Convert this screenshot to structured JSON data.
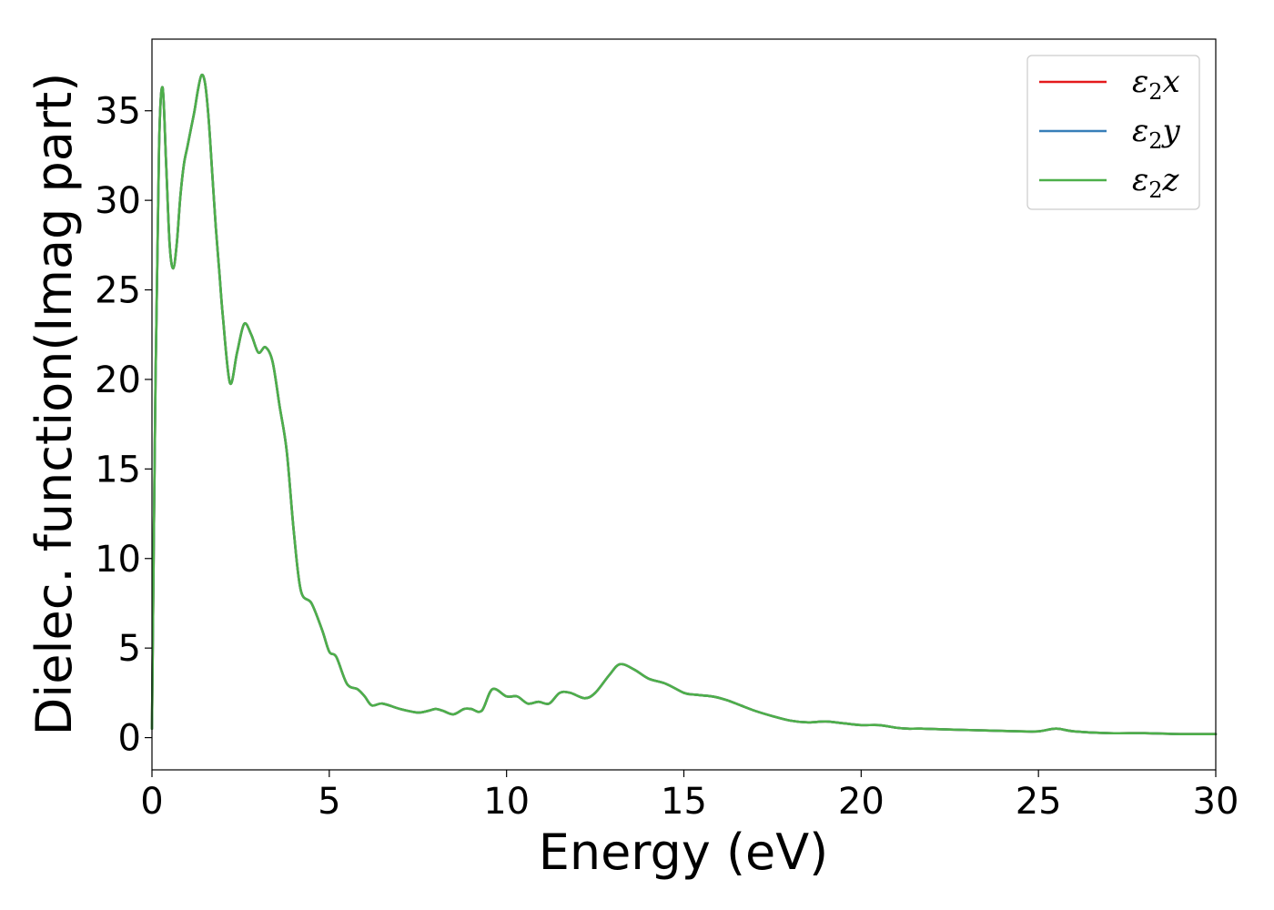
{
  "chart_data": {
    "type": "line",
    "xlabel": "Energy (eV)",
    "ylabel": "Dielec. function(Imag part)",
    "xlim": [
      0,
      30
    ],
    "ylim": [
      -1.8,
      39
    ],
    "xticks": [
      0,
      5,
      10,
      15,
      20,
      25,
      30
    ],
    "yticks": [
      0,
      5,
      10,
      15,
      20,
      25,
      30,
      35
    ],
    "grid": false,
    "legend_position": "top-right",
    "series": [
      {
        "name": "ε₂x",
        "name_parts": {
          "main": "ε",
          "sub": "2",
          "axis": "x"
        },
        "color": "#e41a1c",
        "x": [
          0,
          0.1,
          0.2,
          0.3,
          0.4,
          0.5,
          0.6,
          0.7,
          0.8,
          0.9,
          1.0,
          1.1,
          1.2,
          1.3,
          1.4,
          1.5,
          1.6,
          1.7,
          1.8,
          1.9,
          2.0,
          2.2,
          2.4,
          2.6,
          2.8,
          3.0,
          3.2,
          3.4,
          3.6,
          3.8,
          4.0,
          4.2,
          4.5,
          4.8,
          5.0,
          5.2,
          5.5,
          5.8,
          6.0,
          6.2,
          6.5,
          7.0,
          7.5,
          7.8,
          8.0,
          8.2,
          8.5,
          8.8,
          9.0,
          9.3,
          9.6,
          10.0,
          10.3,
          10.6,
          10.9,
          11.2,
          11.5,
          11.8,
          12.2,
          12.5,
          12.9,
          13.2,
          13.6,
          14.0,
          14.5,
          15.0,
          15.3,
          15.8,
          16.2,
          16.6,
          17.0,
          17.5,
          18.0,
          18.5,
          19.0,
          19.5,
          20.0,
          20.5,
          21.0,
          21.3,
          21.7,
          22.5,
          23.5,
          24.5,
          25.0,
          25.5,
          26.0,
          27.0,
          28.0,
          29.0,
          30.0
        ],
        "y": [
          0.5,
          20.0,
          33.0,
          36.3,
          32.0,
          27.5,
          26.2,
          27.6,
          30.2,
          32.0,
          33.0,
          34.0,
          35.0,
          36.2,
          37.0,
          36.5,
          34.5,
          31.5,
          28.5,
          26.0,
          23.5,
          19.8,
          21.5,
          23.1,
          22.5,
          21.5,
          21.8,
          21.0,
          18.5,
          16.0,
          11.5,
          8.2,
          7.5,
          6.0,
          4.8,
          4.5,
          3.0,
          2.7,
          2.3,
          1.8,
          1.9,
          1.6,
          1.4,
          1.5,
          1.6,
          1.5,
          1.3,
          1.6,
          1.6,
          1.5,
          2.7,
          2.3,
          2.3,
          1.9,
          2.0,
          1.9,
          2.5,
          2.5,
          2.2,
          2.5,
          3.5,
          4.1,
          3.8,
          3.3,
          3.0,
          2.5,
          2.4,
          2.3,
          2.1,
          1.8,
          1.5,
          1.2,
          0.95,
          0.85,
          0.9,
          0.8,
          0.7,
          0.7,
          0.55,
          0.5,
          0.5,
          0.45,
          0.4,
          0.35,
          0.35,
          0.5,
          0.35,
          0.25,
          0.25,
          0.2,
          0.2
        ]
      },
      {
        "name": "ε₂y",
        "name_parts": {
          "main": "ε",
          "sub": "2",
          "axis": "y"
        },
        "color": "#377eb8",
        "x": [
          0,
          0.1,
          0.2,
          0.3,
          0.4,
          0.5,
          0.6,
          0.7,
          0.8,
          0.9,
          1.0,
          1.1,
          1.2,
          1.3,
          1.4,
          1.5,
          1.6,
          1.7,
          1.8,
          1.9,
          2.0,
          2.2,
          2.4,
          2.6,
          2.8,
          3.0,
          3.2,
          3.4,
          3.6,
          3.8,
          4.0,
          4.2,
          4.5,
          4.8,
          5.0,
          5.2,
          5.5,
          5.8,
          6.0,
          6.2,
          6.5,
          7.0,
          7.5,
          7.8,
          8.0,
          8.2,
          8.5,
          8.8,
          9.0,
          9.3,
          9.6,
          10.0,
          10.3,
          10.6,
          10.9,
          11.2,
          11.5,
          11.8,
          12.2,
          12.5,
          12.9,
          13.2,
          13.6,
          14.0,
          14.5,
          15.0,
          15.3,
          15.8,
          16.2,
          16.6,
          17.0,
          17.5,
          18.0,
          18.5,
          19.0,
          19.5,
          20.0,
          20.5,
          21.0,
          21.3,
          21.7,
          22.5,
          23.5,
          24.5,
          25.0,
          25.5,
          26.0,
          27.0,
          28.0,
          29.0,
          30.0
        ],
        "y": [
          0.5,
          20.0,
          33.0,
          36.3,
          32.0,
          27.5,
          26.2,
          27.6,
          30.2,
          32.0,
          33.0,
          34.0,
          35.0,
          36.2,
          37.0,
          36.5,
          34.5,
          31.5,
          28.5,
          26.0,
          23.5,
          19.8,
          21.5,
          23.1,
          22.5,
          21.5,
          21.8,
          21.0,
          18.5,
          16.0,
          11.5,
          8.2,
          7.5,
          6.0,
          4.8,
          4.5,
          3.0,
          2.7,
          2.3,
          1.8,
          1.9,
          1.6,
          1.4,
          1.5,
          1.6,
          1.5,
          1.3,
          1.6,
          1.6,
          1.5,
          2.7,
          2.3,
          2.3,
          1.9,
          2.0,
          1.9,
          2.5,
          2.5,
          2.2,
          2.5,
          3.5,
          4.1,
          3.8,
          3.3,
          3.0,
          2.5,
          2.4,
          2.3,
          2.1,
          1.8,
          1.5,
          1.2,
          0.95,
          0.85,
          0.9,
          0.8,
          0.7,
          0.7,
          0.55,
          0.5,
          0.5,
          0.45,
          0.4,
          0.35,
          0.35,
          0.5,
          0.35,
          0.25,
          0.25,
          0.2,
          0.2
        ]
      },
      {
        "name": "ε₂z",
        "name_parts": {
          "main": "ε",
          "sub": "2",
          "axis": "z"
        },
        "color": "#4daf4a",
        "x": [
          0,
          0.1,
          0.2,
          0.3,
          0.4,
          0.5,
          0.6,
          0.7,
          0.8,
          0.9,
          1.0,
          1.1,
          1.2,
          1.3,
          1.4,
          1.5,
          1.6,
          1.7,
          1.8,
          1.9,
          2.0,
          2.2,
          2.4,
          2.6,
          2.8,
          3.0,
          3.2,
          3.4,
          3.6,
          3.8,
          4.0,
          4.2,
          4.5,
          4.8,
          5.0,
          5.2,
          5.5,
          5.8,
          6.0,
          6.2,
          6.5,
          7.0,
          7.5,
          7.8,
          8.0,
          8.2,
          8.5,
          8.8,
          9.0,
          9.3,
          9.6,
          10.0,
          10.3,
          10.6,
          10.9,
          11.2,
          11.5,
          11.8,
          12.2,
          12.5,
          12.9,
          13.2,
          13.6,
          14.0,
          14.5,
          15.0,
          15.3,
          15.8,
          16.2,
          16.6,
          17.0,
          17.5,
          18.0,
          18.5,
          19.0,
          19.5,
          20.0,
          20.5,
          21.0,
          21.3,
          21.7,
          22.5,
          23.5,
          24.5,
          25.0,
          25.5,
          26.0,
          27.0,
          28.0,
          29.0,
          30.0
        ],
        "y": [
          0.5,
          20.0,
          33.0,
          36.3,
          32.0,
          27.5,
          26.2,
          27.6,
          30.2,
          32.0,
          33.0,
          34.0,
          35.0,
          36.2,
          37.0,
          36.5,
          34.5,
          31.5,
          28.5,
          26.0,
          23.5,
          19.8,
          21.5,
          23.1,
          22.5,
          21.5,
          21.8,
          21.0,
          18.5,
          16.0,
          11.5,
          8.2,
          7.5,
          6.0,
          4.8,
          4.5,
          3.0,
          2.7,
          2.3,
          1.8,
          1.9,
          1.6,
          1.4,
          1.5,
          1.6,
          1.5,
          1.3,
          1.6,
          1.6,
          1.5,
          2.7,
          2.3,
          2.3,
          1.9,
          2.0,
          1.9,
          2.5,
          2.5,
          2.2,
          2.5,
          3.5,
          4.1,
          3.8,
          3.3,
          3.0,
          2.5,
          2.4,
          2.3,
          2.1,
          1.8,
          1.5,
          1.2,
          0.95,
          0.85,
          0.9,
          0.8,
          0.7,
          0.7,
          0.55,
          0.5,
          0.5,
          0.45,
          0.4,
          0.35,
          0.35,
          0.5,
          0.35,
          0.25,
          0.25,
          0.2,
          0.2
        ]
      }
    ]
  }
}
